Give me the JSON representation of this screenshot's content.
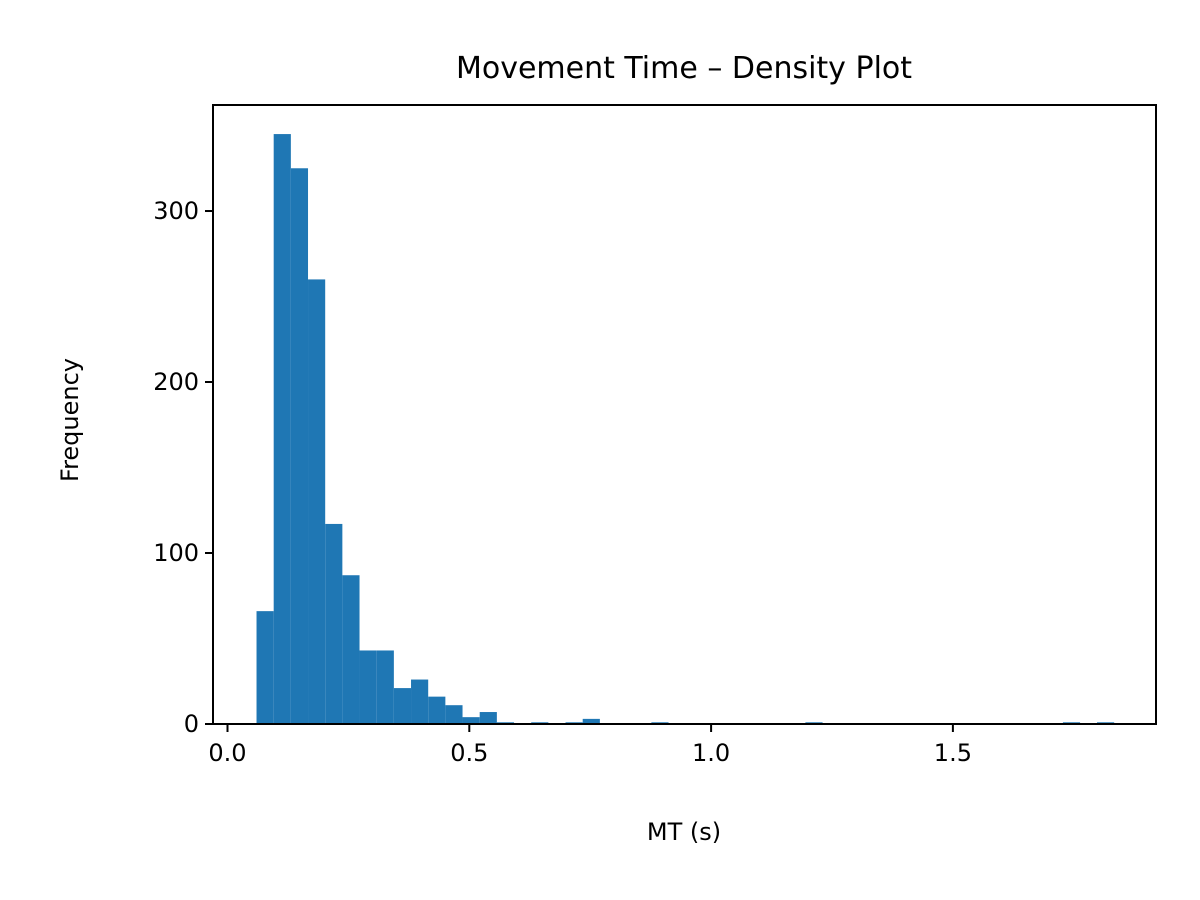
{
  "chart_data": {
    "type": "bar",
    "title": "Movement Time – Density Plot",
    "xlabel": "MT (s)",
    "ylabel": "Frequency",
    "xlim": [
      -0.03,
      1.92
    ],
    "ylim": [
      0,
      362
    ],
    "x_ticks": [
      0.0,
      0.5,
      1.0,
      1.5
    ],
    "x_tick_labels": [
      "0.0",
      "0.5",
      "1.0",
      "1.5"
    ],
    "y_ticks": [
      0,
      100,
      200,
      300
    ],
    "y_tick_labels": [
      "0",
      "100",
      "200",
      "300"
    ],
    "grid": false,
    "legend": "none",
    "bar_color": "#1f77b4",
    "bin_width": 0.0355,
    "bins": [
      {
        "x0": 0.06,
        "value": 66
      },
      {
        "x0": 0.0955,
        "value": 345
      },
      {
        "x0": 0.131,
        "value": 325
      },
      {
        "x0": 0.1665,
        "value": 260
      },
      {
        "x0": 0.202,
        "value": 117
      },
      {
        "x0": 0.2375,
        "value": 87
      },
      {
        "x0": 0.273,
        "value": 43
      },
      {
        "x0": 0.3085,
        "value": 43
      },
      {
        "x0": 0.344,
        "value": 21
      },
      {
        "x0": 0.3795,
        "value": 26
      },
      {
        "x0": 0.415,
        "value": 16
      },
      {
        "x0": 0.4505,
        "value": 11
      },
      {
        "x0": 0.486,
        "value": 4
      },
      {
        "x0": 0.5215,
        "value": 7
      },
      {
        "x0": 0.557,
        "value": 1
      },
      {
        "x0": 0.628,
        "value": 1
      },
      {
        "x0": 0.699,
        "value": 1
      },
      {
        "x0": 0.7345,
        "value": 3
      },
      {
        "x0": 0.8765,
        "value": 1
      },
      {
        "x0": 1.195,
        "value": 1
      },
      {
        "x0": 1.7275,
        "value": 1
      },
      {
        "x0": 1.798,
        "value": 1
      }
    ]
  }
}
